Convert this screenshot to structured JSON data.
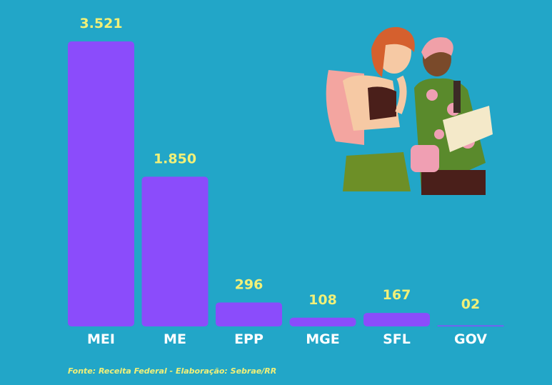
{
  "chart_data": {
    "type": "bar",
    "categories": [
      "MEI",
      "ME",
      "EPP",
      "MGE",
      "SFL",
      "GOV"
    ],
    "values": [
      3521,
      1850,
      296,
      108,
      167,
      2
    ],
    "value_labels": [
      "3.521",
      "1.850",
      "296",
      "108",
      "167",
      "02"
    ],
    "title": "",
    "xlabel": "",
    "ylabel": "",
    "ylim": [
      0,
      3521
    ],
    "grid": false,
    "legend": "none",
    "bar_color": "#8b4cfb",
    "label_color": "#f1f078",
    "category_color": "#ffffff"
  },
  "colors": {
    "background": "#22a6c8"
  },
  "footer": {
    "source": "Fonte: Receita Federal  -  Elaboração: Sebrae/RR"
  },
  "illustration": {
    "icon": "travelers-reading-map-illustration"
  }
}
